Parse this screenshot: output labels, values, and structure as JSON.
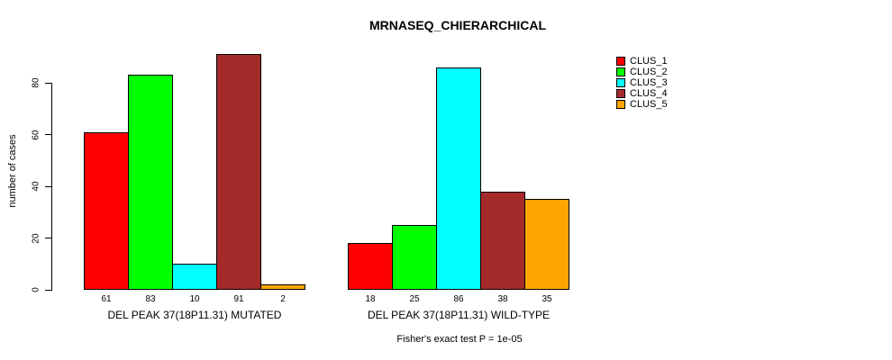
{
  "chart_data": {
    "type": "bar",
    "title": "MRNASEQ_CHIERARCHICAL",
    "ylabel": "number of cases",
    "xlabel": "",
    "yticks": [
      0,
      20,
      40,
      60,
      80
    ],
    "ylim": [
      0,
      92
    ],
    "grid": false,
    "legend_position": "right-outside",
    "legend": [
      {
        "label": "CLUS_1",
        "color": "#FF0000"
      },
      {
        "label": "CLUS_2",
        "color": "#00FF00"
      },
      {
        "label": "CLUS_3",
        "color": "#00FFFF"
      },
      {
        "label": "CLUS_4",
        "color": "#A52A2A"
      },
      {
        "label": "CLUS_5",
        "color": "#FFA500"
      }
    ],
    "groups": [
      {
        "label": "DEL PEAK 37(18P11.31) MUTATED",
        "values": [
          61,
          83,
          10,
          91,
          2
        ]
      },
      {
        "label": "DEL PEAK 37(18P11.31) WILD-TYPE",
        "values": [
          18,
          25,
          86,
          38,
          35
        ]
      }
    ],
    "annotation": "Fisher's exact test P = 1e-05"
  }
}
